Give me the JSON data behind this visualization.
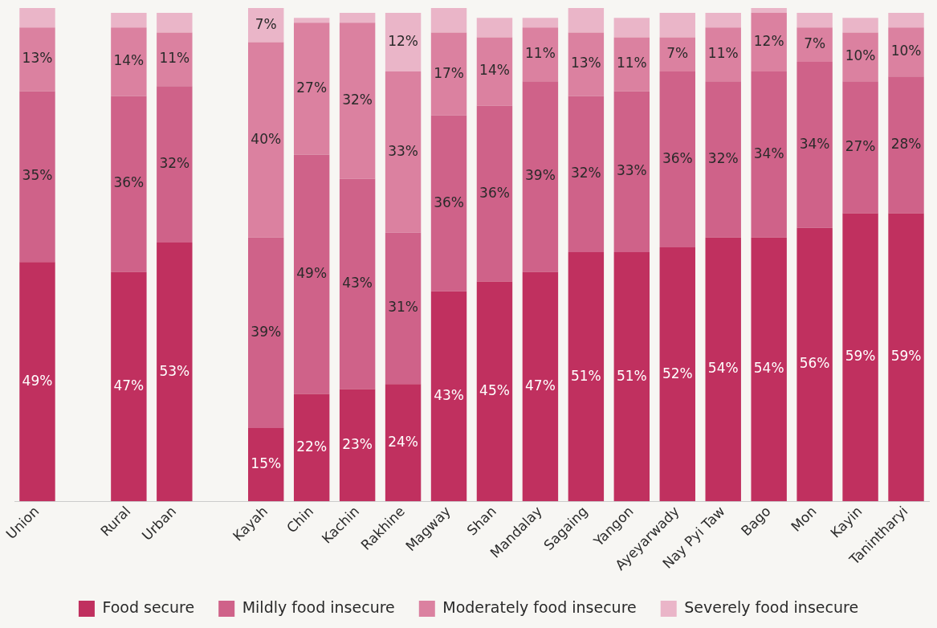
{
  "chart_data": {
    "type": "bar",
    "stacked": true,
    "relative": false,
    "legend": "bottom",
    "grid": false,
    "categories": [
      "Union",
      null,
      "Rural",
      "Urban",
      null,
      "Kayah",
      "Chin",
      "Kachin",
      "Rakhine",
      "Magway",
      "Shan",
      "Mandalay",
      "Sagaing",
      "Yangon",
      "Ayeyarwady",
      "Nay Pyi Taw",
      "Bago",
      "Mon",
      "Kayin",
      "Tanintharyi"
    ],
    "ylim": [
      0,
      101
    ],
    "tick_labels": "x",
    "series": [
      {
        "name": "Food secure",
        "color": "#c0305f",
        "values": [
          49,
          null,
          47,
          53,
          null,
          15,
          22,
          23,
          24,
          43,
          45,
          47,
          51,
          51,
          52,
          54,
          54,
          56,
          59,
          59
        ],
        "value_labels": [
          "49%",
          null,
          "47%",
          "53%",
          null,
          "15%",
          "22%",
          "23%",
          "24%",
          "43%",
          "45%",
          "47%",
          "51%",
          "51%",
          "52%",
          "54%",
          "54%",
          "56%",
          "59%",
          "59%"
        ]
      },
      {
        "name": "Mildly food insecure",
        "color": "#cf6289",
        "values": [
          35,
          null,
          36,
          32,
          null,
          39,
          49,
          43,
          31,
          36,
          36,
          39,
          32,
          33,
          36,
          32,
          34,
          34,
          27,
          28
        ],
        "value_labels": [
          "35%",
          null,
          "36%",
          "32%",
          null,
          "39%",
          "49%",
          "43%",
          "31%",
          "36%",
          "36%",
          "39%",
          "32%",
          "33%",
          "36%",
          "32%",
          "34%",
          "34%",
          "27%",
          "28%"
        ]
      },
      {
        "name": "Moderately food insecure",
        "color": "#db81a0",
        "values": [
          13,
          null,
          14,
          11,
          null,
          40,
          27,
          32,
          33,
          17,
          14,
          11,
          13,
          11,
          7,
          11,
          12,
          7,
          10,
          10
        ],
        "value_labels": [
          "13%",
          null,
          "14%",
          "11%",
          null,
          "40%",
          "27%",
          "32%",
          "33%",
          "17%",
          "14%",
          "11%",
          "13%",
          "11%",
          "7%",
          "11%",
          "12%",
          "7%",
          "10%",
          "10%"
        ]
      },
      {
        "name": "Severely food insecure",
        "color": "#eab5c8",
        "values": [
          4,
          null,
          3,
          4,
          null,
          7,
          1,
          2,
          12,
          5,
          4,
          2,
          5,
          4,
          5,
          3,
          1,
          3,
          3,
          3
        ],
        "value_labels": [
          null,
          null,
          null,
          null,
          null,
          "7%",
          null,
          null,
          "12%",
          null,
          null,
          null,
          null,
          null,
          null,
          null,
          null,
          null,
          null,
          null
        ]
      }
    ]
  }
}
